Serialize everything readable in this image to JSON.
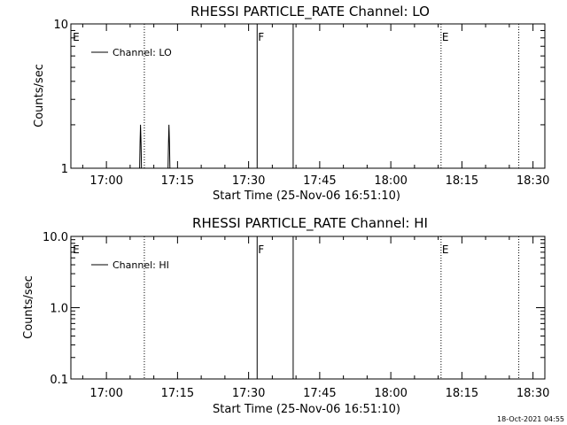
{
  "footer": {
    "timestamp": "18-Oct-2021 04:55"
  },
  "chart_data": [
    {
      "type": "line",
      "title": "RHESSI PARTICLE_RATE Channel: LO",
      "xlabel": "Start Time (25-Nov-06 16:51:10)",
      "ylabel": "Counts/sec",
      "yscale": "log",
      "ylim": [
        1,
        10
      ],
      "xlim_minutes_of_day": [
        1012.5,
        1112.5
      ],
      "x_ticks": [
        "17:00",
        "17:15",
        "17:30",
        "17:45",
        "18:00",
        "18:15",
        "18:30"
      ],
      "x_tick_minutes": [
        1020,
        1035,
        1050,
        1065,
        1080,
        1095,
        1110
      ],
      "y_ticks": [
        "1",
        "10"
      ],
      "y_tick_values": [
        1,
        10
      ],
      "legend": "Channel: LO",
      "legend_position": "top-left",
      "series": [
        {
          "name": "Channel: LO",
          "points": [
            {
              "x": 1027.0,
              "y": 1.0
            },
            {
              "x": 1027.1,
              "y": 1.5
            },
            {
              "x": 1027.2,
              "y": 2.0
            },
            {
              "x": 1027.3,
              "y": 1.5
            },
            {
              "x": 1027.4,
              "y": 1.0
            },
            {
              "x": 1033.0,
              "y": 1.0
            },
            {
              "x": 1033.1,
              "y": 1.5
            },
            {
              "x": 1033.2,
              "y": 2.0
            },
            {
              "x": 1033.3,
              "y": 1.5
            },
            {
              "x": 1033.4,
              "y": 1.0
            }
          ]
        }
      ],
      "event_markers": [
        {
          "label": "E",
          "minute": 1012.7,
          "style": "none"
        },
        {
          "label": "",
          "minute": 1028.0,
          "style": "dotted"
        },
        {
          "label": "F",
          "minute": 1051.8,
          "style": "solid"
        },
        {
          "label": "",
          "minute": 1059.4,
          "style": "solid"
        },
        {
          "label": "E",
          "minute": 1090.6,
          "style": "dotted"
        },
        {
          "label": "",
          "minute": 1107.0,
          "style": "dotted"
        }
      ]
    },
    {
      "type": "line",
      "title": "RHESSI PARTICLE_RATE Channel: HI",
      "xlabel": "Start Time (25-Nov-06 16:51:10)",
      "ylabel": "Counts/sec",
      "yscale": "log",
      "ylim": [
        0.1,
        10
      ],
      "xlim_minutes_of_day": [
        1012.5,
        1112.5
      ],
      "x_ticks": [
        "17:00",
        "17:15",
        "17:30",
        "17:45",
        "18:00",
        "18:15",
        "18:30"
      ],
      "x_tick_minutes": [
        1020,
        1035,
        1050,
        1065,
        1080,
        1095,
        1110
      ],
      "y_ticks": [
        "0.1",
        "1.0",
        "10.0"
      ],
      "y_tick_values": [
        0.1,
        1,
        10
      ],
      "legend": "Channel: HI",
      "legend_position": "top-left",
      "series": [
        {
          "name": "Channel: HI",
          "points": []
        }
      ],
      "event_markers": [
        {
          "label": "E",
          "minute": 1012.7,
          "style": "none"
        },
        {
          "label": "",
          "minute": 1028.0,
          "style": "dotted"
        },
        {
          "label": "F",
          "minute": 1051.8,
          "style": "solid"
        },
        {
          "label": "",
          "minute": 1059.4,
          "style": "solid"
        },
        {
          "label": "E",
          "minute": 1090.6,
          "style": "dotted"
        },
        {
          "label": "",
          "minute": 1107.0,
          "style": "dotted"
        }
      ]
    }
  ]
}
